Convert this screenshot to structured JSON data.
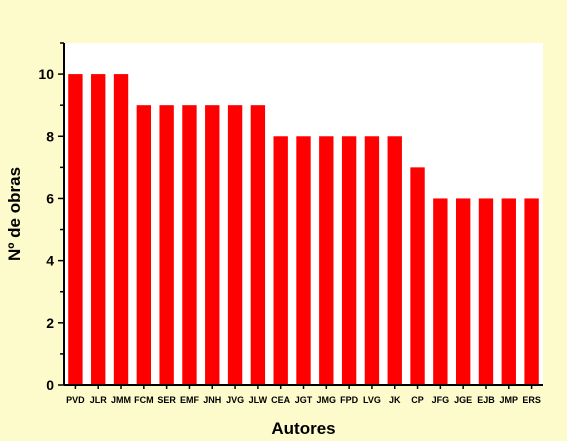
{
  "chart_data": {
    "type": "bar",
    "title": "",
    "xlabel": "Autores",
    "ylabel": "Nº de obras",
    "categories": [
      "PVD",
      "JLR",
      "JMM",
      "FCM",
      "SER",
      "EMF",
      "JNH",
      "JVG",
      "JLW",
      "CEA",
      "JGT",
      "JMG",
      "FPD",
      "LVG",
      "JK",
      "CP",
      "JFG",
      "JGE",
      "EJB",
      "JMP",
      "ERS"
    ],
    "values": [
      10,
      10,
      10,
      9,
      9,
      9,
      9,
      9,
      9,
      8,
      8,
      8,
      8,
      8,
      8,
      7,
      6,
      6,
      6,
      6,
      6
    ],
    "ylim": [
      0,
      11
    ],
    "yticks": [
      0,
      2,
      4,
      6,
      8,
      10
    ],
    "grid": false,
    "legend": "none"
  },
  "colors": {
    "background": "#fdfacb",
    "plot_background": "#ffffff",
    "bar": "#ff0000",
    "axis": "#000000"
  }
}
